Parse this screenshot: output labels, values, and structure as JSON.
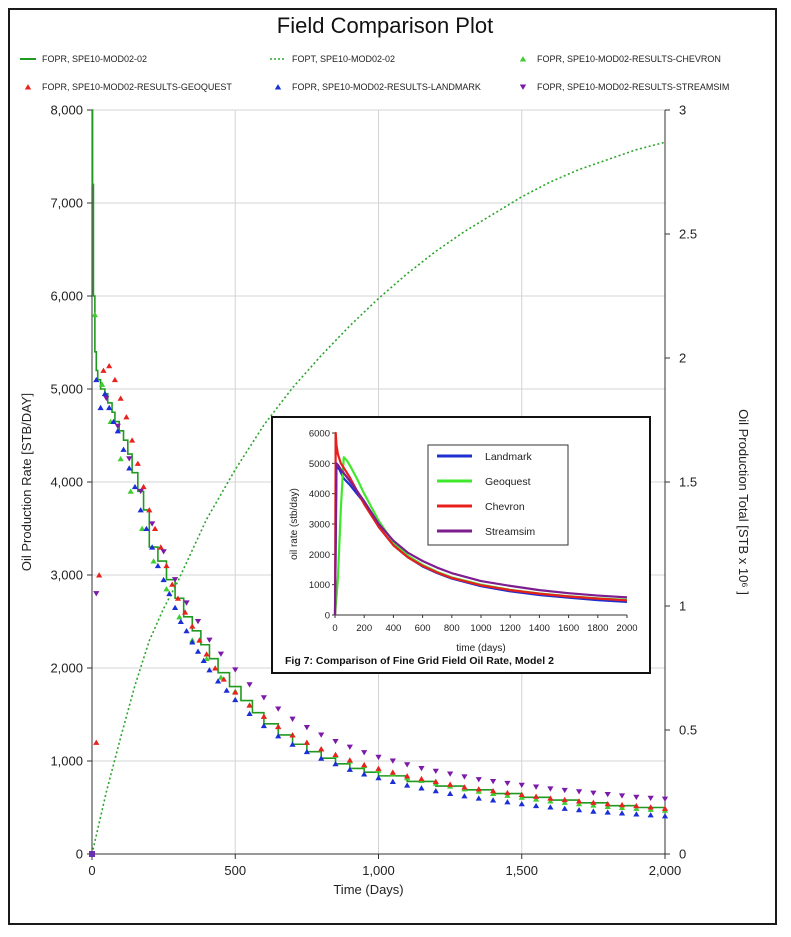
{
  "chart_data": [
    {
      "type": "line",
      "title": "Field Comparison Plot",
      "xlabel": "Time (Days)",
      "ylabel": "Oil Production Rate [STB/DAY]",
      "y2label": "Oil Production Total [STB x 10⁶ ]",
      "xlim": [
        0,
        2000
      ],
      "ylim": [
        0,
        8000
      ],
      "y2lim": [
        0,
        3
      ],
      "x_ticks": [
        "0",
        "500",
        "1,000",
        "1,500",
        "2,000"
      ],
      "y_ticks": [
        "0",
        "1,000",
        "2,000",
        "3,000",
        "4,000",
        "5,000",
        "6,000",
        "7,000",
        "8,000"
      ],
      "y2_ticks": [
        "0",
        "0.5",
        "1",
        "1.5",
        "2",
        "2.5",
        "3"
      ],
      "grid": true,
      "legend_position": "top",
      "series": [
        {
          "name": "FOPR, SPE10-MOD02-02",
          "axis": "left",
          "style": "step",
          "color": "#1f9a1f",
          "x": [
            0,
            2,
            5,
            10,
            15,
            20,
            30,
            45,
            55,
            70,
            80,
            95,
            110,
            125,
            140,
            160,
            180,
            200,
            230,
            260,
            290,
            320,
            350,
            380,
            410,
            440,
            480,
            520,
            560,
            600,
            650,
            700,
            750,
            800,
            850,
            900,
            950,
            1000,
            1100,
            1200,
            1300,
            1400,
            1500,
            1600,
            1700,
            1800,
            1900,
            2000
          ],
          "y": [
            8000,
            7200,
            6000,
            5400,
            5200,
            5100,
            5000,
            4950,
            4850,
            4750,
            4650,
            4550,
            4450,
            4300,
            4100,
            3900,
            3700,
            3300,
            3150,
            2950,
            2750,
            2550,
            2400,
            2250,
            2100,
            1950,
            1800,
            1650,
            1520,
            1400,
            1280,
            1180,
            1100,
            1030,
            970,
            920,
            880,
            840,
            780,
            730,
            690,
            650,
            610,
            580,
            550,
            520,
            500,
            490
          ]
        },
        {
          "name": "FOPT, SPE10-MOD02-02",
          "axis": "right",
          "style": "dotted",
          "color": "#2aa52a",
          "x": [
            0,
            50,
            100,
            150,
            200,
            250,
            300,
            400,
            500,
            600,
            700,
            800,
            900,
            1000,
            1100,
            1200,
            1300,
            1400,
            1500,
            1600,
            1700,
            1800,
            1900,
            2000
          ],
          "y": [
            0,
            0.25,
            0.47,
            0.68,
            0.86,
            0.99,
            1.1,
            1.35,
            1.55,
            1.73,
            1.88,
            2.01,
            2.13,
            2.24,
            2.34,
            2.43,
            2.51,
            2.58,
            2.65,
            2.71,
            2.76,
            2.8,
            2.84,
            2.87
          ]
        },
        {
          "name": "FOPR, SPE10-MOD02-RESULTS-CHEVRON",
          "axis": "left",
          "style": "triangle-up",
          "color": "#3fcc2e",
          "x": [
            10,
            35,
            65,
            100,
            135,
            175,
            215,
            260,
            305,
            350,
            400,
            450,
            500,
            550,
            600,
            650,
            700,
            750,
            800,
            850,
            900,
            950,
            1000,
            1050,
            1100,
            1150,
            1200,
            1250,
            1300,
            1350,
            1400,
            1450,
            1500,
            1550,
            1600,
            1650,
            1700,
            1750,
            1800,
            1850,
            1900,
            1950,
            2000
          ],
          "y": [
            5800,
            5050,
            4650,
            4250,
            3900,
            3500,
            3150,
            2850,
            2550,
            2300,
            2100,
            1900,
            1750,
            1600,
            1480,
            1370,
            1280,
            1200,
            1130,
            1060,
            1000,
            950,
            900,
            860,
            820,
            790,
            760,
            730,
            700,
            675,
            650,
            630,
            610,
            590,
            570,
            555,
            540,
            525,
            510,
            500,
            490,
            480,
            470
          ]
        },
        {
          "name": "FOPR, SPE10-MOD02-RESULTS-GEOQUEST",
          "axis": "left",
          "style": "triangle-up",
          "color": "#e8231f",
          "x": [
            15,
            25,
            40,
            60,
            80,
            100,
            120,
            140,
            160,
            180,
            200,
            220,
            240,
            260,
            280,
            300,
            325,
            350,
            375,
            400,
            430,
            460,
            500,
            550,
            600,
            650,
            700,
            750,
            800,
            850,
            900,
            950,
            1000,
            1050,
            1100,
            1150,
            1200,
            1250,
            1300,
            1350,
            1400,
            1450,
            1500,
            1550,
            1600,
            1650,
            1700,
            1750,
            1800,
            1850,
            1900,
            1950,
            2000
          ],
          "y": [
            1200,
            3000,
            5200,
            5250,
            5100,
            4900,
            4700,
            4450,
            4200,
            3950,
            3700,
            3500,
            3300,
            3100,
            2900,
            2750,
            2600,
            2450,
            2300,
            2150,
            2000,
            1880,
            1740,
            1600,
            1480,
            1370,
            1280,
            1200,
            1130,
            1070,
            1010,
            960,
            920,
            880,
            840,
            810,
            780,
            750,
            720,
            700,
            680,
            660,
            640,
            620,
            600,
            585,
            570,
            555,
            540,
            530,
            520,
            505,
            490
          ]
        },
        {
          "name": "FOPR, SPE10-MOD02-RESULTS-LANDMARK",
          "axis": "left",
          "style": "triangle-up",
          "color": "#1a2fd6",
          "x": [
            15,
            30,
            45,
            60,
            75,
            90,
            110,
            130,
            150,
            170,
            190,
            210,
            230,
            250,
            270,
            290,
            310,
            330,
            350,
            370,
            390,
            410,
            440,
            470,
            500,
            550,
            600,
            650,
            700,
            750,
            800,
            850,
            900,
            950,
            1000,
            1050,
            1100,
            1150,
            1200,
            1250,
            1300,
            1350,
            1400,
            1450,
            1500,
            1550,
            1600,
            1650,
            1700,
            1750,
            1800,
            1850,
            1900,
            1950,
            2000
          ],
          "y": [
            5100,
            4800,
            4950,
            4800,
            4650,
            4550,
            4350,
            4150,
            3950,
            3700,
            3500,
            3300,
            3100,
            2950,
            2800,
            2650,
            2500,
            2400,
            2280,
            2180,
            2080,
            1980,
            1860,
            1760,
            1660,
            1510,
            1380,
            1270,
            1180,
            1100,
            1030,
            970,
            910,
            860,
            820,
            780,
            740,
            710,
            680,
            650,
            625,
            600,
            580,
            560,
            540,
            520,
            505,
            490,
            475,
            460,
            450,
            440,
            430,
            420,
            410
          ]
        },
        {
          "name": "FOPR, SPE10-MOD02-RESULTS-STREAMSIM",
          "axis": "left",
          "style": "triangle-down",
          "color": "#7b19a8",
          "x": [
            15,
            50,
            90,
            130,
            170,
            210,
            250,
            290,
            330,
            370,
            410,
            450,
            500,
            550,
            600,
            650,
            700,
            750,
            800,
            850,
            900,
            950,
            1000,
            1050,
            1100,
            1150,
            1200,
            1250,
            1300,
            1350,
            1400,
            1450,
            1500,
            1550,
            1600,
            1650,
            1700,
            1750,
            1800,
            1850,
            1900,
            1950,
            2000
          ],
          "y": [
            2800,
            4900,
            4600,
            4250,
            3900,
            3550,
            3250,
            2950,
            2700,
            2500,
            2300,
            2150,
            1980,
            1820,
            1680,
            1560,
            1450,
            1360,
            1280,
            1210,
            1150,
            1090,
            1040,
            1000,
            960,
            920,
            890,
            860,
            830,
            800,
            780,
            760,
            740,
            720,
            700,
            685,
            670,
            655,
            640,
            625,
            610,
            600,
            590
          ]
        }
      ]
    },
    {
      "type": "line",
      "title": "",
      "caption": "Fig 7: Comparison of Fine Grid Field Oil Rate, Model 2",
      "xlabel": "time (days)",
      "ylabel": "oil rate (stb/day)",
      "xlim": [
        0,
        2000
      ],
      "ylim": [
        0,
        6000
      ],
      "x_ticks": [
        "0",
        "200",
        "400",
        "600",
        "800",
        "1000",
        "1200",
        "1400",
        "1600",
        "1800",
        "2000"
      ],
      "y_ticks": [
        "0",
        "1000",
        "2000",
        "3000",
        "4000",
        "5000",
        "6000"
      ],
      "legend_position": "top-right",
      "series": [
        {
          "name": "Landmark",
          "color": "#1e2fd0",
          "x": [
            0,
            10,
            30,
            60,
            100,
            150,
            200,
            300,
            400,
            500,
            600,
            700,
            800,
            1000,
            1200,
            1400,
            1600,
            1800,
            2000
          ],
          "y": [
            0,
            4900,
            4800,
            4500,
            4300,
            4000,
            3700,
            2900,
            2300,
            1900,
            1600,
            1380,
            1200,
            950,
            780,
            660,
            570,
            490,
            430
          ]
        },
        {
          "name": "Geoquest",
          "color": "#3ee82a",
          "x": [
            0,
            20,
            40,
            60,
            80,
            100,
            150,
            200,
            300,
            400,
            500,
            600,
            700,
            800,
            1000,
            1200,
            1400,
            1600,
            1800,
            2000
          ],
          "y": [
            0,
            1200,
            3500,
            5200,
            5100,
            4950,
            4500,
            4000,
            3100,
            2400,
            1950,
            1650,
            1420,
            1240,
            1000,
            830,
            710,
            620,
            550,
            500
          ]
        },
        {
          "name": "Chevron",
          "color": "#e8201c",
          "x": [
            0,
            5,
            10,
            20,
            40,
            60,
            100,
            150,
            200,
            300,
            400,
            500,
            600,
            700,
            800,
            1000,
            1200,
            1400,
            1600,
            1800,
            2000
          ],
          "y": [
            0,
            6000,
            5600,
            5300,
            5000,
            4850,
            4550,
            4100,
            3650,
            2900,
            2300,
            1900,
            1620,
            1400,
            1220,
            980,
            820,
            700,
            610,
            540,
            480
          ]
        },
        {
          "name": "Streamsim",
          "color": "#7d1d8f",
          "x": [
            0,
            10,
            20,
            40,
            80,
            120,
            200,
            300,
            400,
            500,
            600,
            700,
            800,
            1000,
            1200,
            1400,
            1600,
            1800,
            2000
          ],
          "y": [
            0,
            5000,
            4950,
            4800,
            4550,
            4300,
            3750,
            3000,
            2450,
            2050,
            1780,
            1560,
            1380,
            1120,
            960,
            820,
            720,
            640,
            580
          ]
        }
      ]
    }
  ]
}
